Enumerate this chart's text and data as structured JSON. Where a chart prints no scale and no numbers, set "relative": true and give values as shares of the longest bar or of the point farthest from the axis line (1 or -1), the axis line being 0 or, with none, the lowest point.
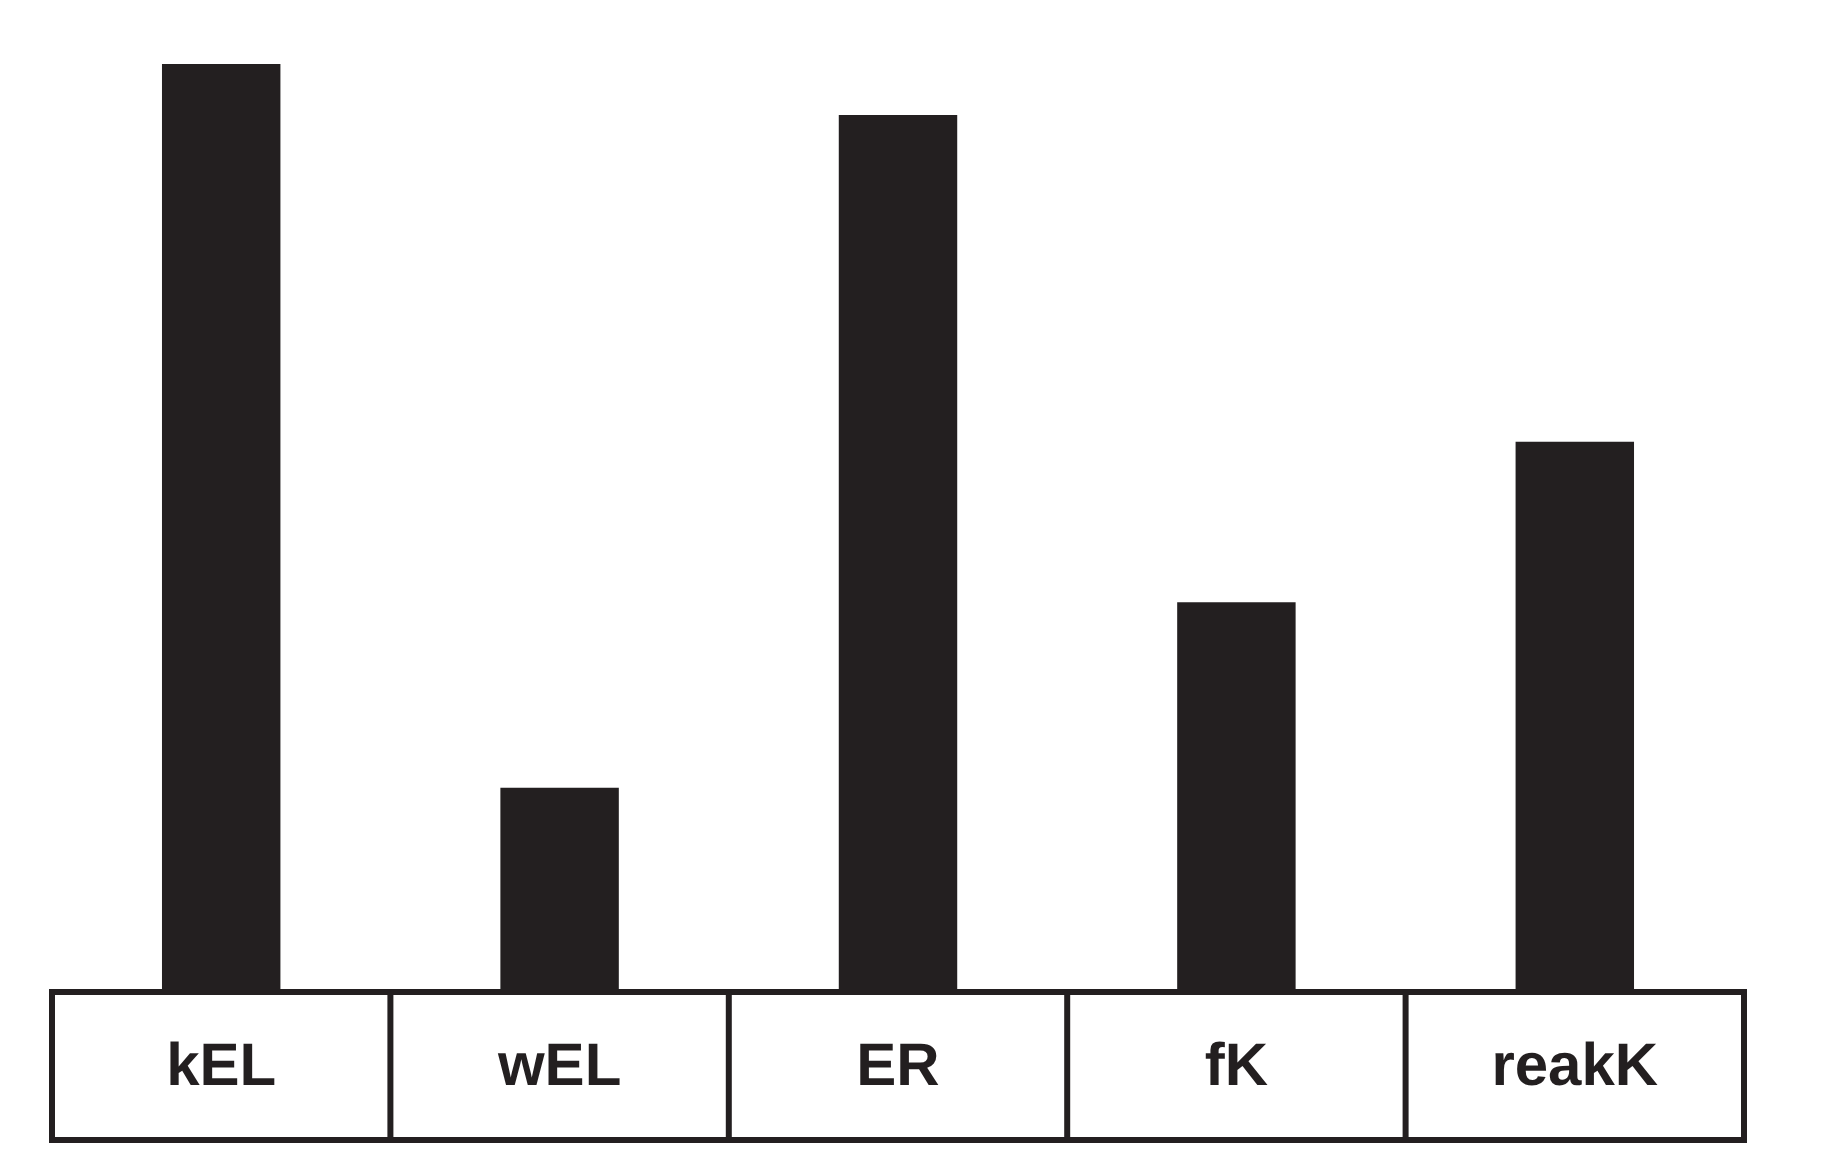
{
  "chart_data": {
    "type": "bar",
    "categories": [
      "kEL",
      "wEL",
      "ER",
      "fK",
      "reakK"
    ],
    "values": [
      1,
      0.22,
      0.945,
      0.42,
      0.593
    ],
    "color": "#231f20",
    "relative": true,
    "grid": false,
    "legend": false
  }
}
